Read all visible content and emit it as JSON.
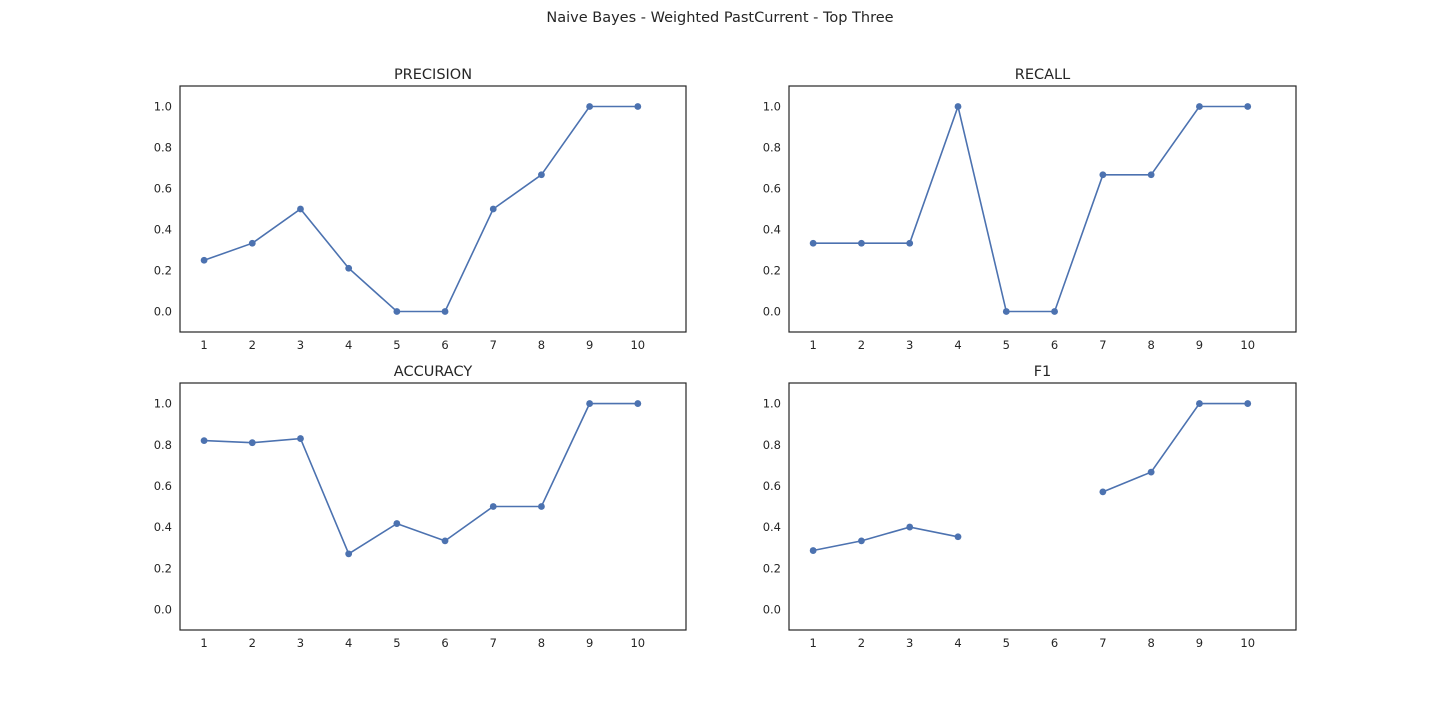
{
  "figure": {
    "title": "Naive Bayes - Weighted PastCurrent - Top Three"
  },
  "chart_data": [
    {
      "type": "line",
      "title": "PRECISION",
      "x": [
        1,
        2,
        3,
        4,
        5,
        6,
        7,
        8,
        9,
        10
      ],
      "values": [
        0.25,
        0.333,
        0.5,
        0.211,
        0.0,
        0.0,
        0.5,
        0.667,
        1.0,
        1.0
      ],
      "xticks": [
        "1",
        "2",
        "3",
        "4",
        "5",
        "6",
        "7",
        "8",
        "9",
        "10"
      ],
      "yticks": [
        "0.0",
        "0.2",
        "0.4",
        "0.6",
        "0.8",
        "1.0"
      ],
      "xlim": [
        0.5,
        11
      ],
      "ylim": [
        -0.1,
        1.1
      ],
      "grid": false,
      "color": "#4c72b0"
    },
    {
      "type": "line",
      "title": "RECALL",
      "x": [
        1,
        2,
        3,
        4,
        5,
        6,
        7,
        8,
        9,
        10
      ],
      "values": [
        0.333,
        0.333,
        0.333,
        1.0,
        0.0,
        0.0,
        0.667,
        0.667,
        1.0,
        1.0
      ],
      "xticks": [
        "1",
        "2",
        "3",
        "4",
        "5",
        "6",
        "7",
        "8",
        "9",
        "10"
      ],
      "yticks": [
        "0.0",
        "0.2",
        "0.4",
        "0.6",
        "0.8",
        "1.0"
      ],
      "xlim": [
        0.5,
        11
      ],
      "ylim": [
        -0.1,
        1.1
      ],
      "grid": false,
      "color": "#4c72b0"
    },
    {
      "type": "line",
      "title": "ACCURACY",
      "x": [
        1,
        2,
        3,
        4,
        5,
        6,
        7,
        8,
        9,
        10
      ],
      "values": [
        0.82,
        0.81,
        0.83,
        0.27,
        0.417,
        0.333,
        0.5,
        0.5,
        1.0,
        1.0
      ],
      "xticks": [
        "1",
        "2",
        "3",
        "4",
        "5",
        "6",
        "7",
        "8",
        "9",
        "10"
      ],
      "yticks": [
        "0.0",
        "0.2",
        "0.4",
        "0.6",
        "0.8",
        "1.0"
      ],
      "xlim": [
        0.5,
        11
      ],
      "ylim": [
        -0.1,
        1.1
      ],
      "grid": false,
      "color": "#4c72b0"
    },
    {
      "type": "line",
      "title": "F1",
      "x": [
        1,
        2,
        3,
        4,
        5,
        6,
        7,
        8,
        9,
        10
      ],
      "values": [
        0.286,
        0.333,
        0.4,
        0.353,
        null,
        null,
        0.571,
        0.667,
        1.0,
        1.0
      ],
      "xticks": [
        "1",
        "2",
        "3",
        "4",
        "5",
        "6",
        "7",
        "8",
        "9",
        "10"
      ],
      "yticks": [
        "0.0",
        "0.2",
        "0.4",
        "0.6",
        "0.8",
        "1.0"
      ],
      "xlim": [
        0.5,
        11
      ],
      "ylim": [
        -0.1,
        1.1
      ],
      "grid": false,
      "color": "#4c72b0"
    }
  ]
}
